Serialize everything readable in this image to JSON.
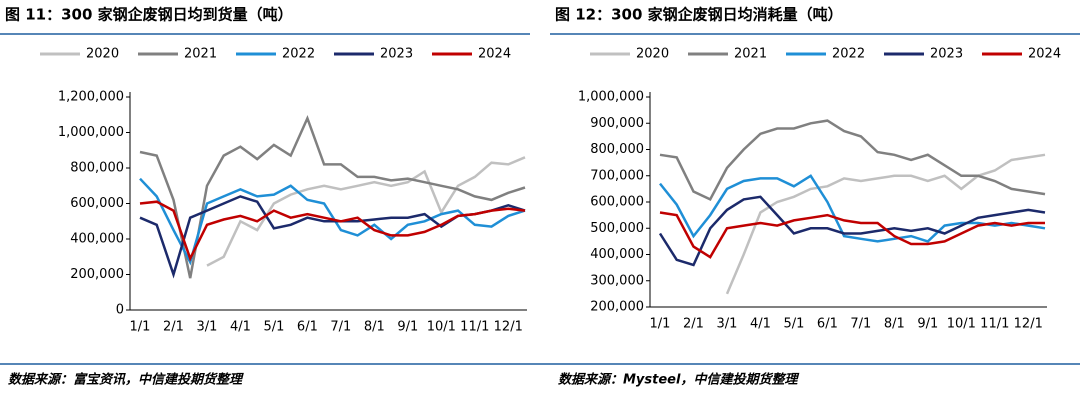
{
  "chart_data": [
    {
      "type": "line",
      "title": "图 11：300 家钢企废钢日均到货量（吨）",
      "source": "数据来源：富宝资讯，中信建投期货整理",
      "categories": [
        "1/1",
        null,
        "2/1",
        null,
        "3/1",
        null,
        "4/1",
        null,
        "5/1",
        null,
        "6/1",
        null,
        "7/1",
        null,
        "8/1",
        null,
        "9/1",
        null,
        "10/1",
        null,
        "11/1",
        null,
        "12/1",
        null
      ],
      "ylim": [
        0,
        1200000
      ],
      "yticks": [
        0,
        {
          "value": 200000,
          "label": "200,000"
        },
        {
          "value": 400000,
          "label": "400,000"
        },
        {
          "value": 600000,
          "label": "600,000"
        },
        {
          "value": 800000,
          "label": "800,000"
        },
        {
          "value": 1000000,
          "label": "1,000,000"
        },
        {
          "value": 1200000,
          "label": "1,200,000"
        }
      ],
      "series": [
        {
          "name": "2020",
          "color": "#c0c0c0",
          "values": [
            null,
            null,
            null,
            null,
            250000,
            300000,
            500000,
            450000,
            600000,
            650000,
            680000,
            700000,
            680000,
            700000,
            720000,
            700000,
            720000,
            780000,
            550000,
            700000,
            750000,
            830000,
            820000,
            860000
          ]
        },
        {
          "name": "2021",
          "color": "#808080",
          "values": [
            890000,
            870000,
            620000,
            180000,
            700000,
            870000,
            920000,
            850000,
            930000,
            870000,
            1080000,
            820000,
            820000,
            750000,
            750000,
            730000,
            740000,
            720000,
            700000,
            680000,
            640000,
            620000,
            660000,
            690000
          ]
        },
        {
          "name": "2022",
          "color": "#1f8fd6",
          "values": [
            740000,
            640000,
            450000,
            270000,
            600000,
            640000,
            680000,
            640000,
            650000,
            700000,
            620000,
            600000,
            450000,
            420000,
            480000,
            400000,
            480000,
            500000,
            540000,
            560000,
            480000,
            470000,
            530000,
            560000
          ]
        },
        {
          "name": "2023",
          "color": "#1c2a6b",
          "values": [
            520000,
            480000,
            200000,
            520000,
            560000,
            600000,
            640000,
            610000,
            460000,
            480000,
            520000,
            500000,
            500000,
            500000,
            510000,
            520000,
            520000,
            540000,
            470000,
            530000,
            540000,
            560000,
            590000,
            560000
          ]
        },
        {
          "name": "2024",
          "color": "#c00000",
          "values": [
            600000,
            610000,
            560000,
            290000,
            480000,
            510000,
            530000,
            500000,
            560000,
            520000,
            540000,
            520000,
            500000,
            520000,
            450000,
            420000,
            420000,
            440000,
            480000,
            530000,
            540000,
            560000,
            570000,
            560000
          ]
        }
      ]
    },
    {
      "type": "line",
      "title": "图 12：300 家钢企废钢日均消耗量（吨）",
      "source": "数据来源：Mysteel，中信建投期货整理",
      "categories": [
        "1/1",
        null,
        "2/1",
        null,
        "3/1",
        null,
        "4/1",
        null,
        "5/1",
        null,
        "6/1",
        null,
        "7/1",
        null,
        "8/1",
        null,
        "9/1",
        null,
        "10/1",
        null,
        "11/1",
        null,
        "12/1",
        null
      ],
      "ylim": [
        200000,
        1000000
      ],
      "yticks": [
        {
          "value": 200000,
          "label": "200,000"
        },
        {
          "value": 300000,
          "label": "300,000"
        },
        {
          "value": 400000,
          "label": "400,000"
        },
        {
          "value": 500000,
          "label": "500,000"
        },
        {
          "value": 600000,
          "label": "600,000"
        },
        {
          "value": 700000,
          "label": "700,000"
        },
        {
          "value": 800000,
          "label": "800,000"
        },
        {
          "value": 900000,
          "label": "900,000"
        },
        {
          "value": 1000000,
          "label": "1,000,000"
        }
      ],
      "series": [
        {
          "name": "2020",
          "color": "#c0c0c0",
          "values": [
            null,
            null,
            null,
            null,
            250000,
            400000,
            560000,
            600000,
            620000,
            650000,
            660000,
            690000,
            680000,
            690000,
            700000,
            700000,
            680000,
            700000,
            650000,
            700000,
            720000,
            760000,
            770000,
            780000
          ]
        },
        {
          "name": "2021",
          "color": "#808080",
          "values": [
            780000,
            770000,
            640000,
            610000,
            730000,
            800000,
            860000,
            880000,
            880000,
            900000,
            910000,
            870000,
            850000,
            790000,
            780000,
            760000,
            780000,
            740000,
            700000,
            700000,
            680000,
            650000,
            640000,
            630000
          ]
        },
        {
          "name": "2022",
          "color": "#1f8fd6",
          "values": [
            670000,
            590000,
            470000,
            550000,
            650000,
            680000,
            690000,
            690000,
            660000,
            700000,
            600000,
            470000,
            460000,
            450000,
            460000,
            470000,
            450000,
            510000,
            520000,
            520000,
            510000,
            520000,
            510000,
            500000
          ]
        },
        {
          "name": "2023",
          "color": "#1c2a6b",
          "values": [
            480000,
            380000,
            360000,
            500000,
            570000,
            610000,
            620000,
            550000,
            480000,
            500000,
            500000,
            480000,
            480000,
            490000,
            500000,
            490000,
            500000,
            480000,
            510000,
            540000,
            550000,
            560000,
            570000,
            560000
          ]
        },
        {
          "name": "2024",
          "color": "#c00000",
          "values": [
            560000,
            550000,
            430000,
            390000,
            500000,
            510000,
            520000,
            510000,
            530000,
            540000,
            550000,
            530000,
            520000,
            520000,
            470000,
            440000,
            440000,
            450000,
            480000,
            510000,
            520000,
            510000,
            520000,
            520000
          ]
        }
      ]
    }
  ]
}
